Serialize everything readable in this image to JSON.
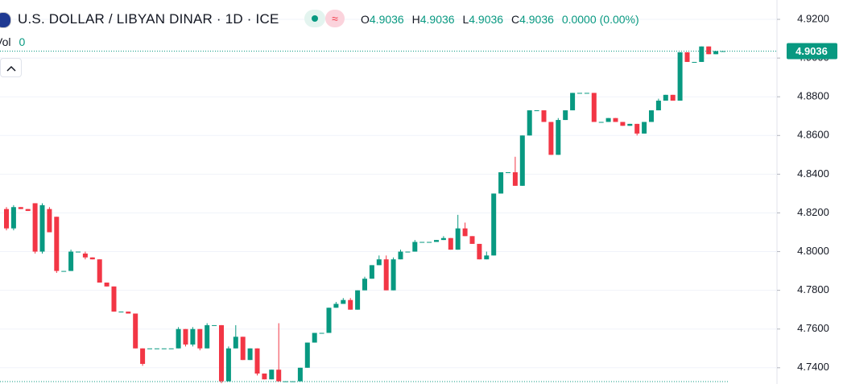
{
  "chart_data": {
    "type": "candlestick",
    "title": "U.S. DOLLAR / LIBYAN DINAR · 1D · ICE",
    "legend": {
      "open_label": "O",
      "open": 4.9036,
      "high_label": "H",
      "high": 4.9036,
      "low_label": "L",
      "low": 4.9036,
      "close_label": "C",
      "close": 4.9036,
      "change": {
        "value": 0,
        "label": "0.0000"
      },
      "change_percent": {
        "value": 0,
        "label": "(0.00%)"
      }
    },
    "volume_label": "Vol",
    "volume": 0,
    "last_price": 4.9036,
    "up_color": "#089981",
    "down_color": "#f23645",
    "ylim": [
      4.7316,
      4.93
    ],
    "yticks": [
      {
        "value": 4.74,
        "label": "4.7400"
      },
      {
        "value": 4.76,
        "label": "4.7600"
      },
      {
        "value": 4.78,
        "label": "4.7800"
      },
      {
        "value": 4.8,
        "label": "4.8000"
      },
      {
        "value": 4.82,
        "label": "4.8200"
      },
      {
        "value": 4.84,
        "label": "4.8400"
      },
      {
        "value": 4.86,
        "label": "4.8600"
      },
      {
        "value": 4.88,
        "label": "4.8800"
      },
      {
        "value": 4.9,
        "label": "4.9000"
      },
      {
        "value": 4.92,
        "label": "4.9200"
      }
    ],
    "grid": true,
    "candles": [
      [
        4.822,
        4.823,
        4.811,
        4.812
      ],
      [
        4.812,
        4.824,
        4.811,
        4.823
      ],
      [
        4.823,
        4.823,
        4.822,
        4.822
      ],
      [
        4.822,
        4.822,
        4.821,
        4.821
      ],
      [
        4.825,
        4.825,
        4.799,
        4.8
      ],
      [
        4.8,
        4.825,
        4.799,
        4.824
      ],
      [
        4.822,
        4.823,
        4.81,
        4.81
      ],
      [
        4.818,
        4.818,
        4.789,
        4.79
      ],
      [
        4.79,
        4.79,
        4.79,
        4.79
      ],
      [
        4.79,
        4.801,
        4.79,
        4.8
      ],
      [
        4.8,
        4.8,
        4.8,
        4.8
      ],
      [
        4.799,
        4.8,
        4.796,
        4.797
      ],
      [
        4.797,
        4.797,
        4.796,
        4.796
      ],
      [
        4.796,
        4.796,
        4.784,
        4.784
      ],
      [
        4.784,
        4.784,
        4.782,
        4.782
      ],
      [
        4.782,
        4.782,
        4.769,
        4.769
      ],
      [
        4.769,
        4.769,
        4.769,
        4.769
      ],
      [
        4.769,
        4.769,
        4.768,
        4.768
      ],
      [
        4.768,
        4.768,
        4.75,
        4.75
      ],
      [
        4.75,
        4.75,
        4.741,
        4.742
      ],
      [
        4.75,
        4.75,
        4.75,
        4.75
      ],
      [
        4.75,
        4.75,
        4.75,
        4.75
      ],
      [
        4.75,
        4.75,
        4.75,
        4.75
      ],
      [
        4.75,
        4.75,
        4.75,
        4.75
      ],
      [
        4.75,
        4.761,
        4.75,
        4.76
      ],
      [
        4.76,
        4.76,
        4.751,
        4.752
      ],
      [
        4.752,
        4.761,
        4.751,
        4.76
      ],
      [
        4.76,
        4.76,
        4.749,
        4.75
      ],
      [
        4.75,
        4.763,
        4.75,
        4.762
      ],
      [
        4.762,
        4.762,
        4.762,
        4.762
      ],
      [
        4.762,
        4.762,
        4.732,
        4.733
      ],
      [
        4.733,
        4.751,
        4.733,
        4.75
      ],
      [
        4.75,
        4.762,
        4.75,
        4.756
      ],
      [
        4.756,
        4.756,
        4.744,
        4.744
      ],
      [
        4.744,
        4.75,
        4.744,
        4.75
      ],
      [
        4.75,
        4.75,
        4.736,
        4.737
      ],
      [
        4.737,
        4.737,
        4.734,
        4.734
      ],
      [
        4.734,
        4.739,
        4.734,
        4.739
      ],
      [
        4.739,
        4.763,
        4.733,
        4.733
      ],
      [
        4.733,
        4.733,
        4.733,
        4.733
      ],
      [
        4.733,
        4.733,
        4.733,
        4.733
      ],
      [
        4.733,
        4.74,
        4.733,
        4.74
      ],
      [
        4.74,
        4.753,
        4.74,
        4.753
      ],
      [
        4.753,
        4.758,
        4.753,
        4.758
      ],
      [
        4.758,
        4.758,
        4.758,
        4.758
      ],
      [
        4.758,
        4.771,
        4.758,
        4.771
      ],
      [
        4.771,
        4.774,
        4.771,
        4.773
      ],
      [
        4.773,
        4.776,
        4.773,
        4.775
      ],
      [
        4.775,
        4.776,
        4.77,
        4.77
      ],
      [
        4.77,
        4.78,
        4.77,
        4.78
      ],
      [
        4.78,
        4.787,
        4.78,
        4.786
      ],
      [
        4.786,
        4.793,
        4.786,
        4.793
      ],
      [
        4.793,
        4.798,
        4.793,
        4.796
      ],
      [
        4.796,
        4.798,
        4.78,
        4.78
      ],
      [
        4.78,
        4.797,
        4.78,
        4.796
      ],
      [
        4.796,
        4.801,
        4.796,
        4.8
      ],
      [
        4.8,
        4.8,
        4.8,
        4.8
      ],
      [
        4.8,
        4.806,
        4.8,
        4.805
      ],
      [
        4.805,
        4.805,
        4.805,
        4.805
      ],
      [
        4.805,
        4.805,
        4.805,
        4.805
      ],
      [
        4.805,
        4.806,
        4.805,
        4.806
      ],
      [
        4.806,
        4.808,
        4.806,
        4.807
      ],
      [
        4.807,
        4.807,
        4.801,
        4.801
      ],
      [
        4.801,
        4.819,
        4.801,
        4.812
      ],
      [
        4.812,
        4.815,
        4.808,
        4.808
      ],
      [
        4.808,
        4.808,
        4.804,
        4.804
      ],
      [
        4.804,
        4.804,
        4.796,
        4.796
      ],
      [
        4.796,
        4.8,
        4.796,
        4.798
      ],
      [
        4.798,
        4.83,
        4.798,
        4.83
      ],
      [
        4.83,
        4.841,
        4.83,
        4.841
      ],
      [
        4.841,
        4.841,
        4.841,
        4.841
      ],
      [
        4.841,
        4.849,
        4.834,
        4.834
      ],
      [
        4.834,
        4.86,
        4.834,
        4.86
      ],
      [
        4.86,
        4.873,
        4.86,
        4.873
      ],
      [
        4.873,
        4.873,
        4.873,
        4.873
      ],
      [
        4.873,
        4.873,
        4.867,
        4.867
      ],
      [
        4.867,
        4.867,
        4.85,
        4.85
      ],
      [
        4.85,
        4.869,
        4.85,
        4.868
      ],
      [
        4.868,
        4.873,
        4.868,
        4.873
      ],
      [
        4.873,
        4.882,
        4.873,
        4.882
      ],
      [
        4.882,
        4.882,
        4.882,
        4.882
      ],
      [
        4.882,
        4.882,
        4.882,
        4.882
      ],
      [
        4.882,
        4.882,
        4.867,
        4.867
      ],
      [
        4.867,
        4.867,
        4.867,
        4.867
      ],
      [
        4.867,
        4.869,
        4.867,
        4.869
      ],
      [
        4.869,
        4.869,
        4.867,
        4.867
      ],
      [
        4.867,
        4.867,
        4.865,
        4.865
      ],
      [
        4.865,
        4.866,
        4.865,
        4.866
      ],
      [
        4.866,
        4.866,
        4.86,
        4.861
      ],
      [
        4.861,
        4.867,
        4.861,
        4.867
      ],
      [
        4.867,
        4.873,
        4.867,
        4.873
      ],
      [
        4.873,
        4.879,
        4.873,
        4.878
      ],
      [
        4.878,
        4.881,
        4.878,
        4.881
      ],
      [
        4.881,
        4.881,
        4.878,
        4.878
      ],
      [
        4.878,
        4.903,
        4.878,
        4.903
      ],
      [
        4.903,
        4.903,
        4.898,
        4.898
      ],
      [
        4.898,
        4.898,
        4.898,
        4.898
      ],
      [
        4.898,
        4.906,
        4.898,
        4.906
      ],
      [
        4.906,
        4.906,
        4.902,
        4.902
      ],
      [
        4.902,
        4.9036,
        4.902,
        4.9036
      ],
      [
        4.9036,
        4.9036,
        4.9036,
        4.9036
      ]
    ]
  }
}
